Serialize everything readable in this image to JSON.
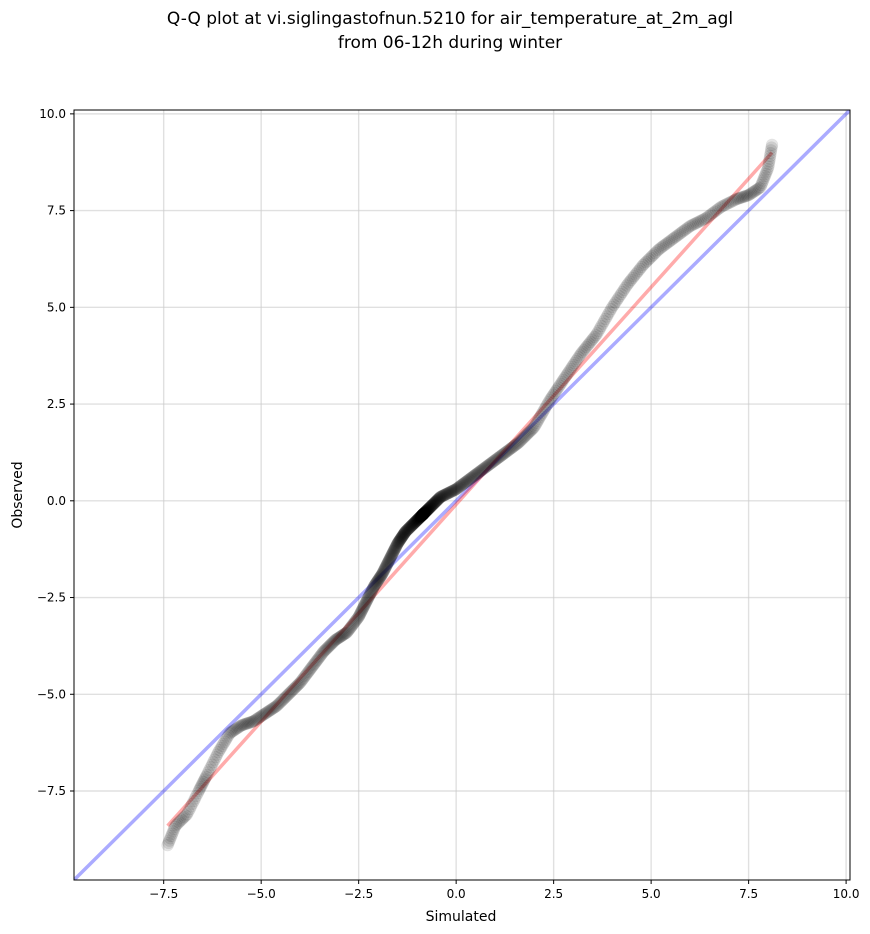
{
  "chart_data": {
    "type": "scatter",
    "title_lines": [
      "Q-Q plot at vi.siglingastofnun.5210 for air_temperature_at_2m_agl",
      "from 06-12h during winter"
    ],
    "xlabel": "Simulated",
    "ylabel": "Observed",
    "xlim": [
      -9.8,
      10.1
    ],
    "ylim": [
      -9.8,
      10.1
    ],
    "xticks": [
      -7.5,
      -5.0,
      -2.5,
      0.0,
      2.5,
      5.0,
      7.5,
      10.0
    ],
    "yticks": [
      -7.5,
      -5.0,
      -2.5,
      0.0,
      2.5,
      5.0,
      7.5,
      10.0
    ],
    "xtick_labels": [
      "−7.5",
      "−5.0",
      "−2.5",
      "0.0",
      "2.5",
      "5.0",
      "7.5",
      "10.0"
    ],
    "ytick_labels": [
      "−7.5",
      "−5.0",
      "−2.5",
      "0.0",
      "2.5",
      "5.0",
      "7.5",
      "10.0"
    ],
    "grid": true,
    "point_color": "#000000",
    "reference_line_color": "#0000ff",
    "fit_line_color": "#ff0000",
    "reference_line": {
      "x": [
        -9.8,
        10.1
      ],
      "y": [
        -9.8,
        10.1
      ]
    },
    "fit_line": {
      "x": [
        -7.4,
        8.1
      ],
      "y": [
        -8.4,
        9.0
      ]
    },
    "quantile_curve": {
      "x": [
        -7.4,
        -7.2,
        -6.9,
        -6.6,
        -6.4,
        -6.1,
        -5.8,
        -5.5,
        -5.2,
        -4.9,
        -4.6,
        -4.3,
        -4.0,
        -3.7,
        -3.4,
        -3.1,
        -2.8,
        -2.5,
        -2.3,
        -2.1,
        -1.9,
        -1.7,
        -1.5,
        -1.3,
        -1.0,
        -0.7,
        -0.4,
        0.0,
        0.4,
        0.8,
        1.2,
        1.6,
        2.0,
        2.4,
        2.8,
        3.2,
        3.6,
        4.0,
        4.4,
        4.8,
        5.2,
        5.6,
        6.0,
        6.4,
        6.8,
        7.2,
        7.5,
        7.8,
        8.0,
        8.1
      ],
      "y": [
        -8.9,
        -8.4,
        -8.1,
        -7.5,
        -7.1,
        -6.5,
        -6.0,
        -5.8,
        -5.7,
        -5.5,
        -5.3,
        -5.0,
        -4.7,
        -4.3,
        -3.9,
        -3.6,
        -3.4,
        -3.0,
        -2.6,
        -2.2,
        -1.9,
        -1.5,
        -1.1,
        -0.8,
        -0.5,
        -0.2,
        0.1,
        0.3,
        0.6,
        0.9,
        1.2,
        1.5,
        1.9,
        2.6,
        3.2,
        3.8,
        4.3,
        5.0,
        5.6,
        6.1,
        6.5,
        6.8,
        7.1,
        7.3,
        7.6,
        7.8,
        7.9,
        8.1,
        8.6,
        9.2
      ]
    }
  }
}
